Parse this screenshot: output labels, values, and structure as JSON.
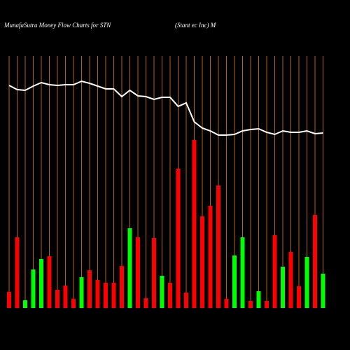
{
  "chart_data": {
    "type": "bar-line",
    "title": "MunafaSutra  Money Flow  Charts for STN",
    "subtitle": "(Stant                    ec Inc) M",
    "categories": [
      null,
      null,
      null,
      null,
      null,
      null,
      null,
      null,
      null,
      null,
      null,
      null,
      null,
      null,
      null,
      null,
      null,
      null,
      null,
      null,
      null,
      null,
      null,
      null,
      null,
      null,
      null,
      null,
      null,
      null,
      null,
      null,
      null,
      null,
      null,
      null,
      null,
      null,
      null,
      null
    ],
    "ylim": [
      0,
      440
    ],
    "grid_color": "#b8650a",
    "series": [
      {
        "type": "bar",
        "values": [
          23,
          101,
          11,
          55,
          70,
          74,
          26,
          32,
          13,
          44,
          54,
          40,
          36,
          36,
          60,
          114,
          101,
          14,
          100,
          46,
          36,
          199,
          22,
          240,
          131,
          146,
          175,
          13,
          75,
          101,
          10,
          24,
          10,
          104,
          59,
          80,
          31,
          73,
          133,
          49
        ],
        "colors": [
          "#ff0000",
          "#ff0000",
          "#00ff00",
          "#00ff00",
          "#00ff00",
          "#ff0000",
          "#ff0000",
          "#ff0000",
          "#ff0000",
          "#00ff00",
          "#ff0000",
          "#ff0000",
          "#ff0000",
          "#ff0000",
          "#ff0000",
          "#00ff00",
          "#ff0000",
          "#ff0000",
          "#ff0000",
          "#00ff00",
          "#ff0000",
          "#ff0000",
          "#ff0000",
          "#ff0000",
          "#ff0000",
          "#ff0000",
          "#ff0000",
          "#ff0000",
          "#00ff00",
          "#00ff00",
          "#ff0000",
          "#00ff00",
          "#ff0000",
          "#ff0000",
          "#00ff00",
          "#ff0000",
          "#ff0000",
          "#00ff00",
          "#ff0000",
          "#00ff00"
        ]
      },
      {
        "type": "line",
        "color": "#ffffff",
        "values": [
          318,
          312,
          311,
          317,
          322,
          319,
          318,
          319,
          319,
          324,
          321,
          317,
          313,
          313,
          302,
          311,
          303,
          302,
          298,
          301,
          301,
          288,
          293,
          266,
          257,
          253,
          247,
          247,
          248,
          253,
          255,
          256,
          251,
          248,
          253,
          251,
          251,
          253,
          249,
          250
        ]
      }
    ]
  }
}
